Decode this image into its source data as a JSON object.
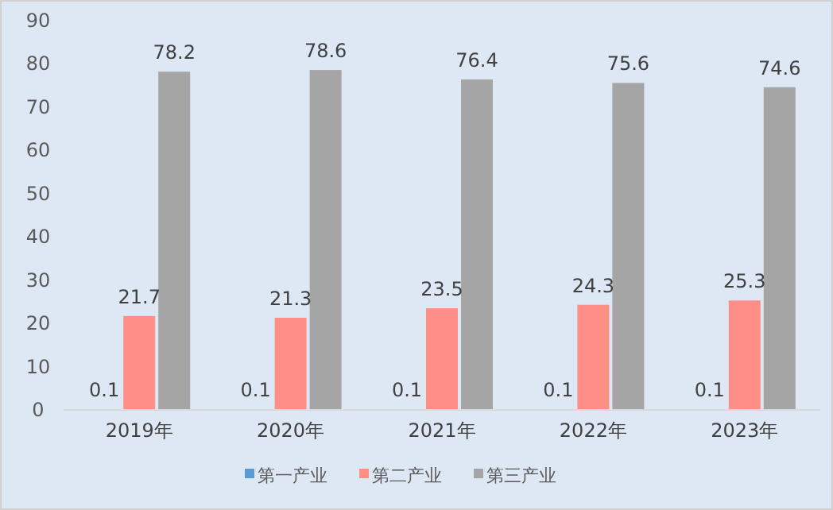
{
  "chart_data": {
    "type": "bar",
    "categories": [
      "2019年",
      "2020年",
      "2021年",
      "2022年",
      "2023年"
    ],
    "series": [
      {
        "name": "第一产业",
        "color": "#5b9bd5",
        "values": [
          0.1,
          0.1,
          0.1,
          0.1,
          0.1
        ]
      },
      {
        "name": "第二产业",
        "color": "#ff8f86",
        "values": [
          21.7,
          21.3,
          23.5,
          24.3,
          25.3
        ]
      },
      {
        "name": "第三产业",
        "color": "#a5a5a5",
        "values": [
          78.2,
          78.6,
          76.4,
          75.6,
          74.6
        ]
      }
    ],
    "ylim": [
      0,
      90
    ],
    "yticks": [
      0,
      10,
      20,
      30,
      40,
      50,
      60,
      70,
      80,
      90
    ],
    "data_labels": true,
    "grid": false,
    "legend": "bottom"
  }
}
